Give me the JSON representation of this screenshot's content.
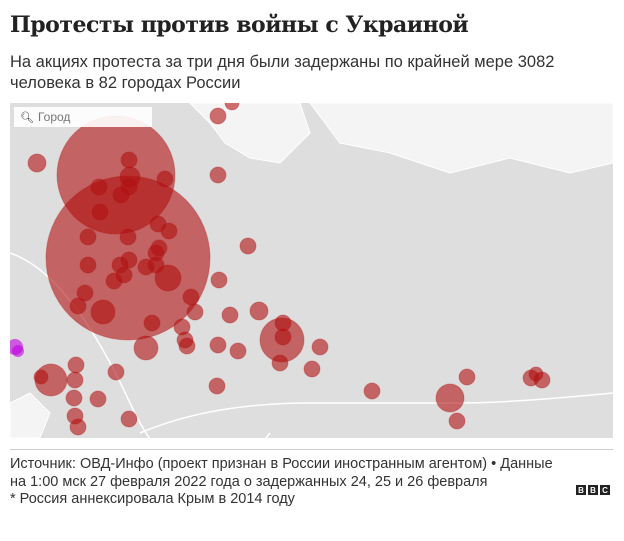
{
  "header": {
    "title": "Протесты против войны с Украиной",
    "subtitle": "На акциях протеста за три дня были задержаны по крайней мере 3082 человека в 82 городах России"
  },
  "map": {
    "search_placeholder": "Город",
    "circle_color": "#b01010",
    "highlight_color": "#c000e0"
  },
  "footer": {
    "source": "Источник: ОВД-Инфо (проект признан в России иностранным агентом) • Данные на 1:00 мск 27 февраля 2022 года о задержанных 24, 25 и 26 февраля",
    "note": "* Россия аннексировала Крым в 2014 году",
    "logo": [
      "B",
      "B",
      "C"
    ]
  }
}
